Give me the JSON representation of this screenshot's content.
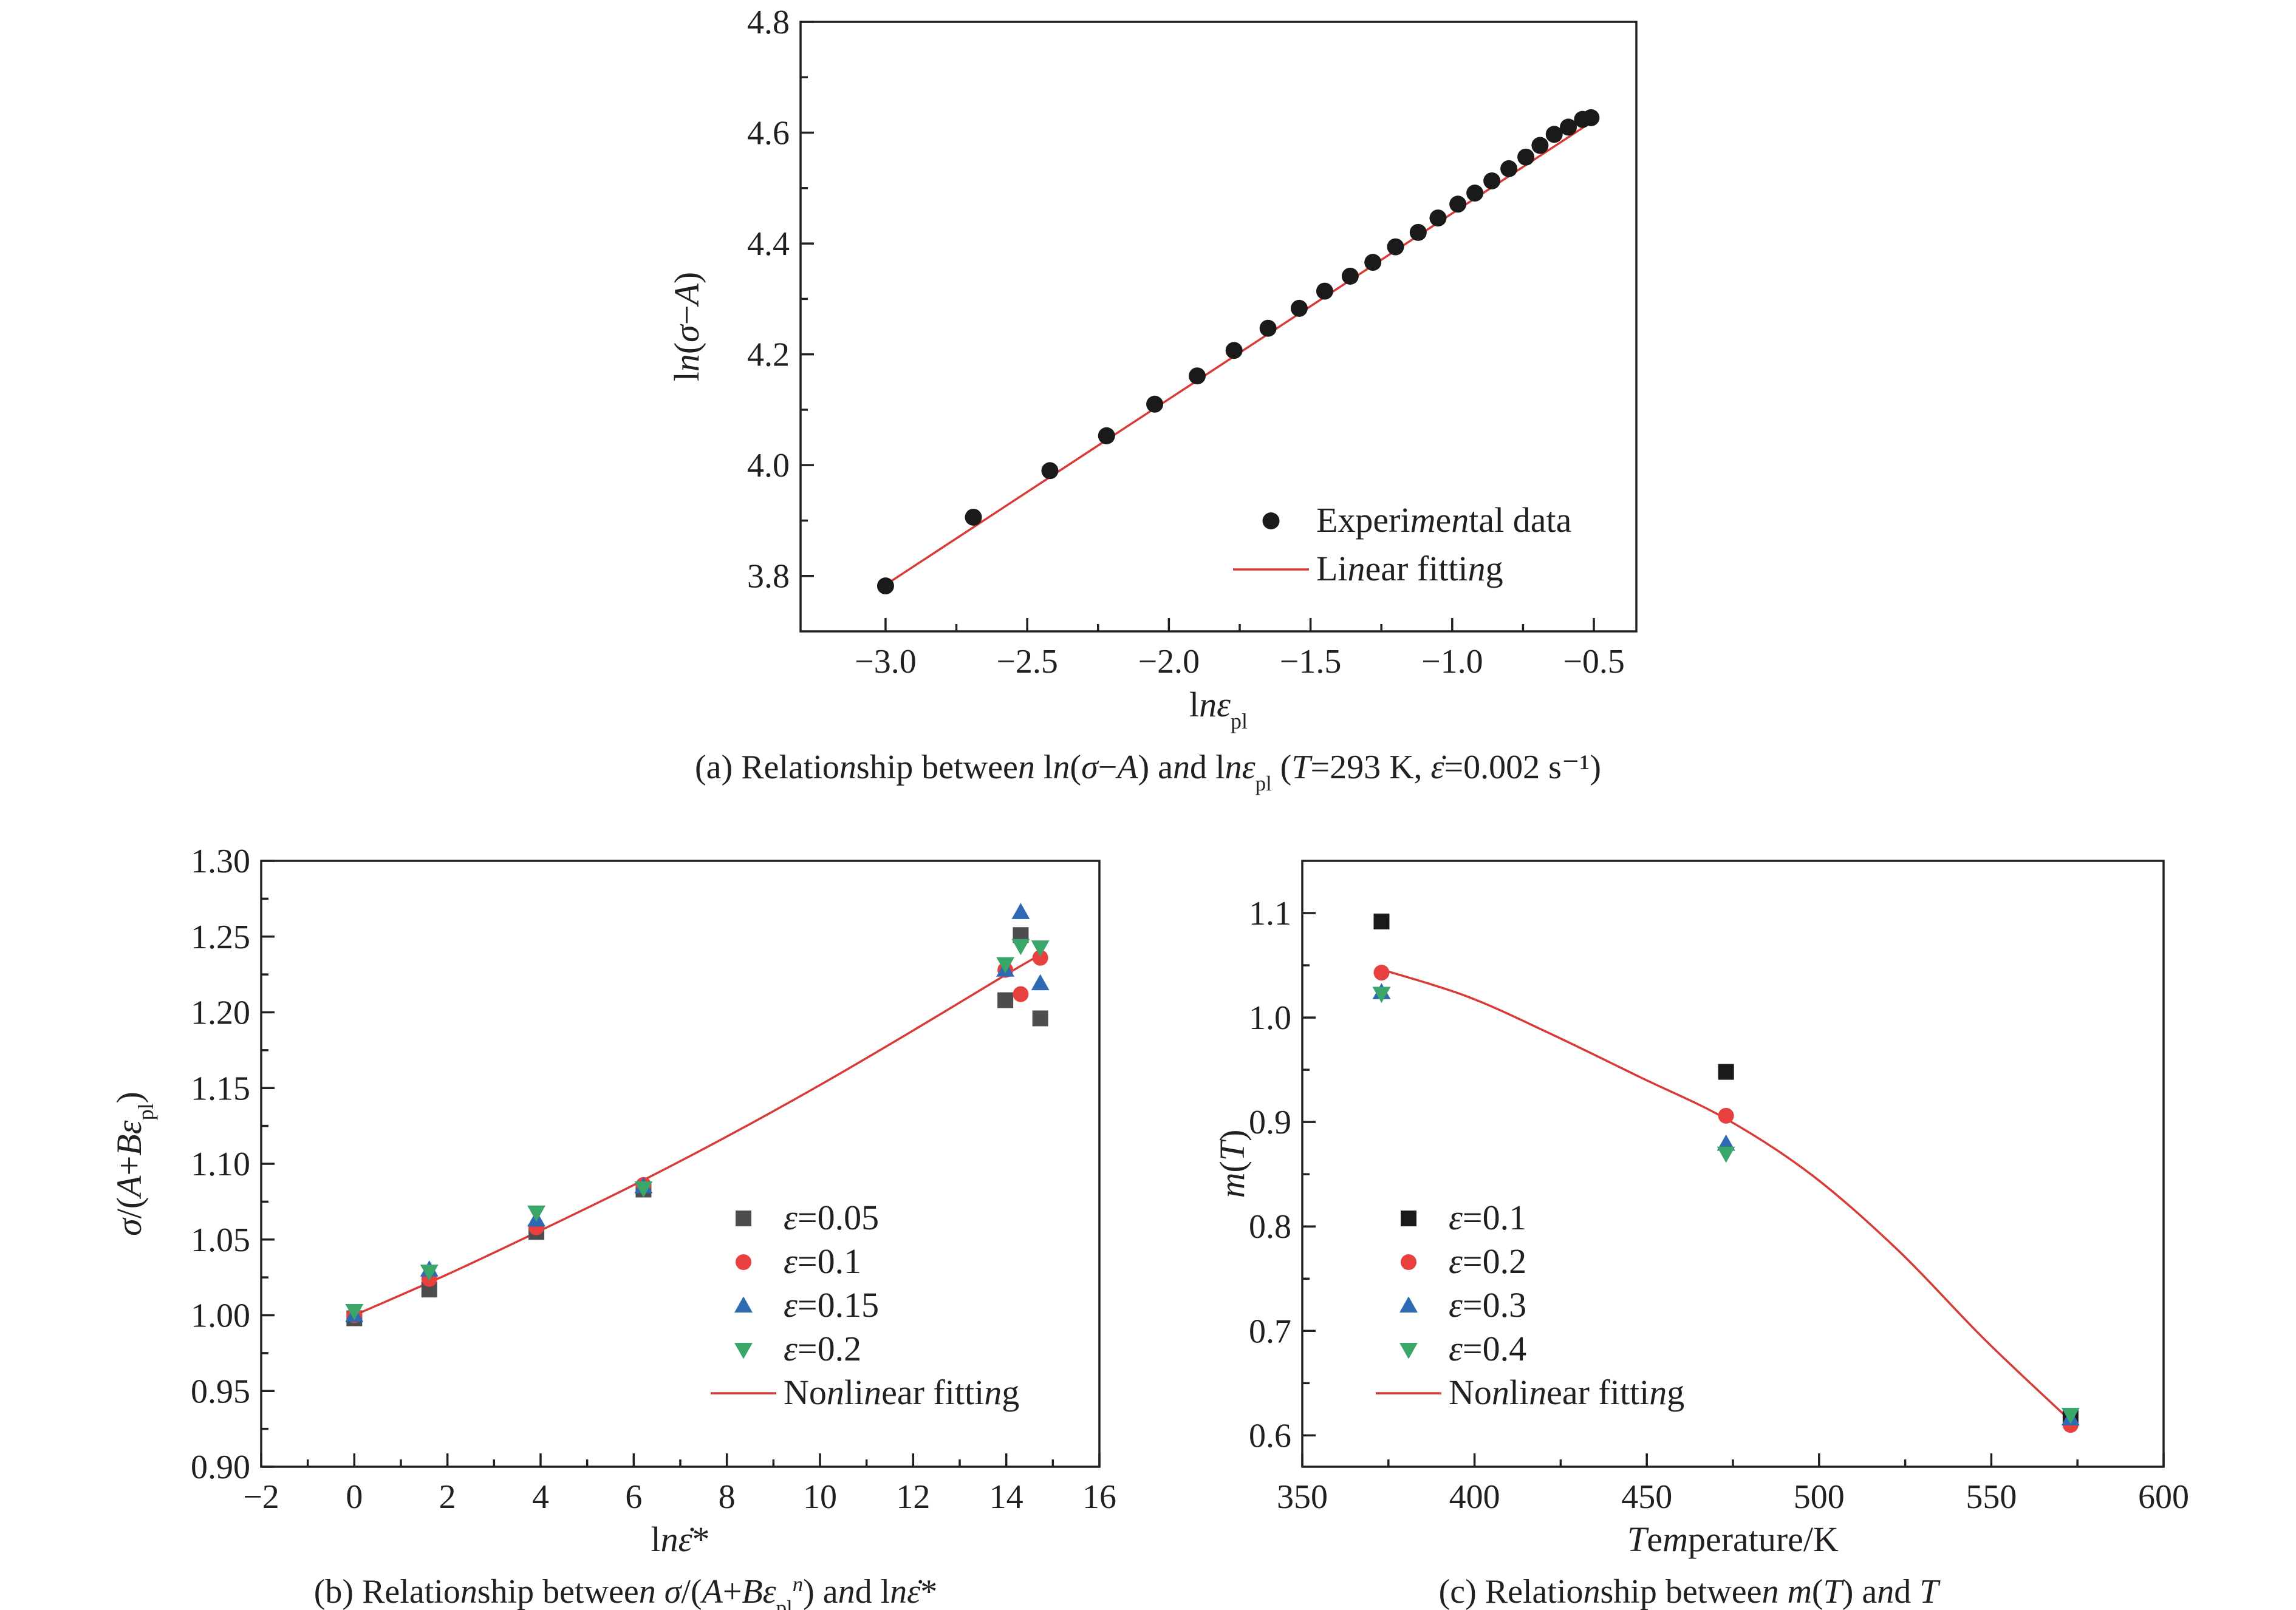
{
  "colors": {
    "black": "#1a1a1a",
    "gray": "#4d4d4d",
    "red": "#e8403f",
    "blue": "#2e69b3",
    "green": "#3aa66a",
    "fit": "#d93a35"
  },
  "chart_data": [
    {
      "id": "a",
      "type": "scatter",
      "caption": "(a) Relationship between ln(σ−A) and lnε_pl (T=293 K, ε̇=0.002 s⁻¹)",
      "xlabel": "lnε_pl",
      "ylabel": "ln(σ−A)",
      "xlim": [
        -3.3,
        -0.35
      ],
      "ylim": [
        3.7,
        4.8
      ],
      "xticks": [
        -3.0,
        -2.5,
        -2.0,
        -1.5,
        -1.0,
        -0.5
      ],
      "xtick_labels": [
        "−3.0",
        "−2.5",
        "−2.0",
        "−1.5",
        "−1.0",
        "−0.5"
      ],
      "yticks": [
        3.8,
        4.0,
        4.2,
        4.4,
        4.6,
        4.8
      ],
      "ytick_labels": [
        "3.8",
        "4.0",
        "4.2",
        "4.4",
        "4.6",
        "4.8"
      ],
      "legend_position": "bottom-right",
      "series": [
        {
          "name": "Experimental data",
          "marker": "circle",
          "color": "#1a1a1a",
          "x": [
            -3.0,
            -2.69,
            -2.42,
            -2.22,
            -2.05,
            -1.9,
            -1.77,
            -1.65,
            -1.54,
            -1.45,
            -1.36,
            -1.28,
            -1.2,
            -1.12,
            -1.05,
            -0.98,
            -0.92,
            -0.86,
            -0.8,
            -0.74,
            -0.69,
            -0.64,
            -0.59,
            -0.54,
            -0.51
          ],
          "y": [
            3.782,
            3.906,
            3.99,
            4.053,
            4.11,
            4.161,
            4.207,
            4.247,
            4.283,
            4.314,
            4.341,
            4.366,
            4.394,
            4.42,
            4.446,
            4.471,
            4.491,
            4.513,
            4.535,
            4.556,
            4.577,
            4.597,
            4.61,
            4.624,
            4.627
          ]
        }
      ],
      "fit": {
        "name": "Linear fitting",
        "type": "linear",
        "color": "#d93a35",
        "x": [
          -3.0,
          -0.5
        ],
        "y": [
          3.784,
          4.622
        ]
      }
    },
    {
      "id": "b",
      "type": "scatter",
      "caption": "(b) Relationship between σ/(A+Bε_pl^n) and lnε̇*",
      "xlabel": "lnε̇*",
      "ylabel": "σ/(A+Bε_pl)",
      "xlim": [
        -2,
        16
      ],
      "ylim": [
        0.9,
        1.3
      ],
      "xticks": [
        -2,
        0,
        2,
        4,
        6,
        8,
        10,
        12,
        14,
        16
      ],
      "xtick_labels": [
        "−2",
        "0",
        "2",
        "4",
        "6",
        "8",
        "10",
        "12",
        "14",
        "16"
      ],
      "yticks": [
        0.9,
        0.95,
        1.0,
        1.05,
        1.1,
        1.15,
        1.2,
        1.25,
        1.3
      ],
      "ytick_labels": [
        "0.90",
        "0.95",
        "1.00",
        "1.05",
        "1.10",
        "1.15",
        "1.20",
        "1.25",
        "1.30"
      ],
      "legend_position": "bottom-right",
      "series": [
        {
          "name": "ε=0.05",
          "marker": "square",
          "color": "#4d4d4d",
          "x": [
            0,
            1.61,
            3.91,
            6.21,
            13.98,
            14.31,
            14.73
          ],
          "y": [
            0.998,
            1.017,
            1.055,
            1.083,
            1.208,
            1.251,
            1.196
          ]
        },
        {
          "name": "ε=0.1",
          "marker": "circle",
          "color": "#e8403f",
          "x": [
            0,
            1.61,
            3.91,
            6.21,
            13.98,
            14.31,
            14.73
          ],
          "y": [
            1.0,
            1.024,
            1.058,
            1.086,
            1.228,
            1.212,
            1.236
          ]
        },
        {
          "name": "ε=0.15",
          "marker": "triangle-up",
          "color": "#2e69b3",
          "x": [
            0,
            1.61,
            3.91,
            6.21,
            13.98,
            14.31,
            14.73
          ],
          "y": [
            1.0,
            1.03,
            1.063,
            1.085,
            1.228,
            1.266,
            1.219
          ]
        },
        {
          "name": "ε=0.2",
          "marker": "triangle-down",
          "color": "#3aa66a",
          "x": [
            0,
            1.61,
            3.91,
            6.21,
            13.98,
            14.31,
            14.73
          ],
          "y": [
            1.003,
            1.029,
            1.068,
            1.084,
            1.232,
            1.244,
            1.243
          ]
        }
      ],
      "fit": {
        "name": "Nonlinear fitting",
        "type": "curve",
        "color": "#d93a35",
        "x": [
          0,
          2,
          4,
          6,
          8,
          10,
          12,
          14,
          14.73
        ],
        "y": [
          1.0,
          1.027,
          1.056,
          1.086,
          1.118,
          1.152,
          1.188,
          1.225,
          1.238
        ]
      }
    },
    {
      "id": "c",
      "type": "scatter",
      "caption": "(c) Relationship between m(T) and T",
      "xlabel": "Temperature/K",
      "ylabel": "m(T)",
      "xlim": [
        350,
        600
      ],
      "ylim": [
        0.57,
        1.15
      ],
      "xticks": [
        350,
        400,
        450,
        500,
        550,
        600
      ],
      "xtick_labels": [
        "350",
        "400",
        "450",
        "500",
        "550",
        "600"
      ],
      "yticks": [
        0.6,
        0.7,
        0.8,
        0.9,
        1.0,
        1.1
      ],
      "ytick_labels": [
        "0.6",
        "0.7",
        "0.8",
        "0.9",
        "1.0",
        "1.1"
      ],
      "legend_position": "bottom-left",
      "series": [
        {
          "name": "ε=0.1",
          "marker": "square",
          "color": "#1a1a1a",
          "x": [
            373,
            473,
            573
          ],
          "y": [
            1.092,
            0.948,
            0.617
          ]
        },
        {
          "name": "ε=0.2",
          "marker": "circle",
          "color": "#e8403f",
          "x": [
            373,
            473,
            573
          ],
          "y": [
            1.043,
            0.906,
            0.61
          ]
        },
        {
          "name": "ε=0.3",
          "marker": "triangle-up",
          "color": "#2e69b3",
          "x": [
            373,
            473,
            573
          ],
          "y": [
            1.024,
            0.879,
            0.616
          ]
        },
        {
          "name": "ε=0.4",
          "marker": "triangle-down",
          "color": "#3aa66a",
          "x": [
            373,
            473,
            573
          ],
          "y": [
            1.023,
            0.87,
            0.62
          ]
        }
      ],
      "fit": {
        "name": "Nonlinear fitting",
        "type": "curve",
        "color": "#d93a35",
        "x": [
          373,
          398,
          423,
          448,
          473,
          498,
          523,
          548,
          573
        ],
        "y": [
          1.046,
          1.02,
          0.983,
          0.943,
          0.903,
          0.849,
          0.777,
          0.692,
          0.614
        ]
      }
    }
  ]
}
